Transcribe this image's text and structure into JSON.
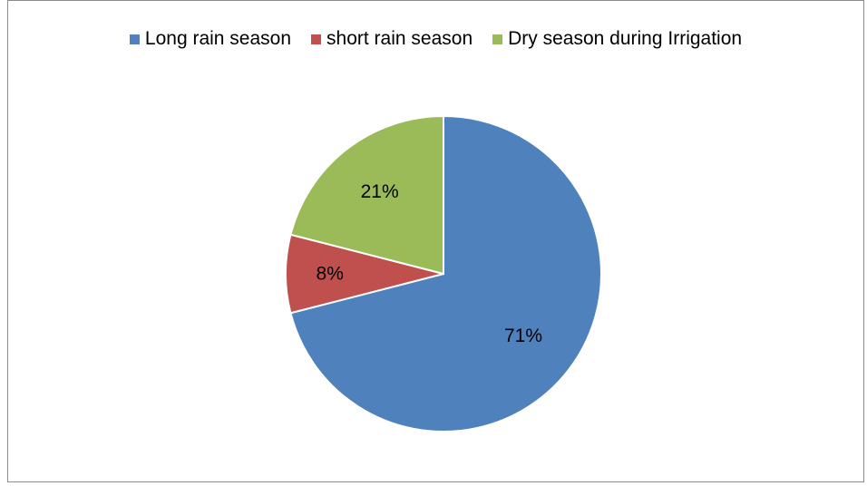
{
  "chart_data": {
    "type": "pie",
    "title": "",
    "categories": [
      "Long rain season",
      "short rain season",
      "Dry season during Irrigation"
    ],
    "values": [
      71,
      8,
      21
    ],
    "labels": [
      "71%",
      "8%",
      "21%"
    ],
    "colors": [
      "#4F81BD",
      "#C0504D",
      "#9BBB59"
    ],
    "legend_position": "top",
    "start_angle_deg": 0,
    "direction": "clockwise"
  }
}
